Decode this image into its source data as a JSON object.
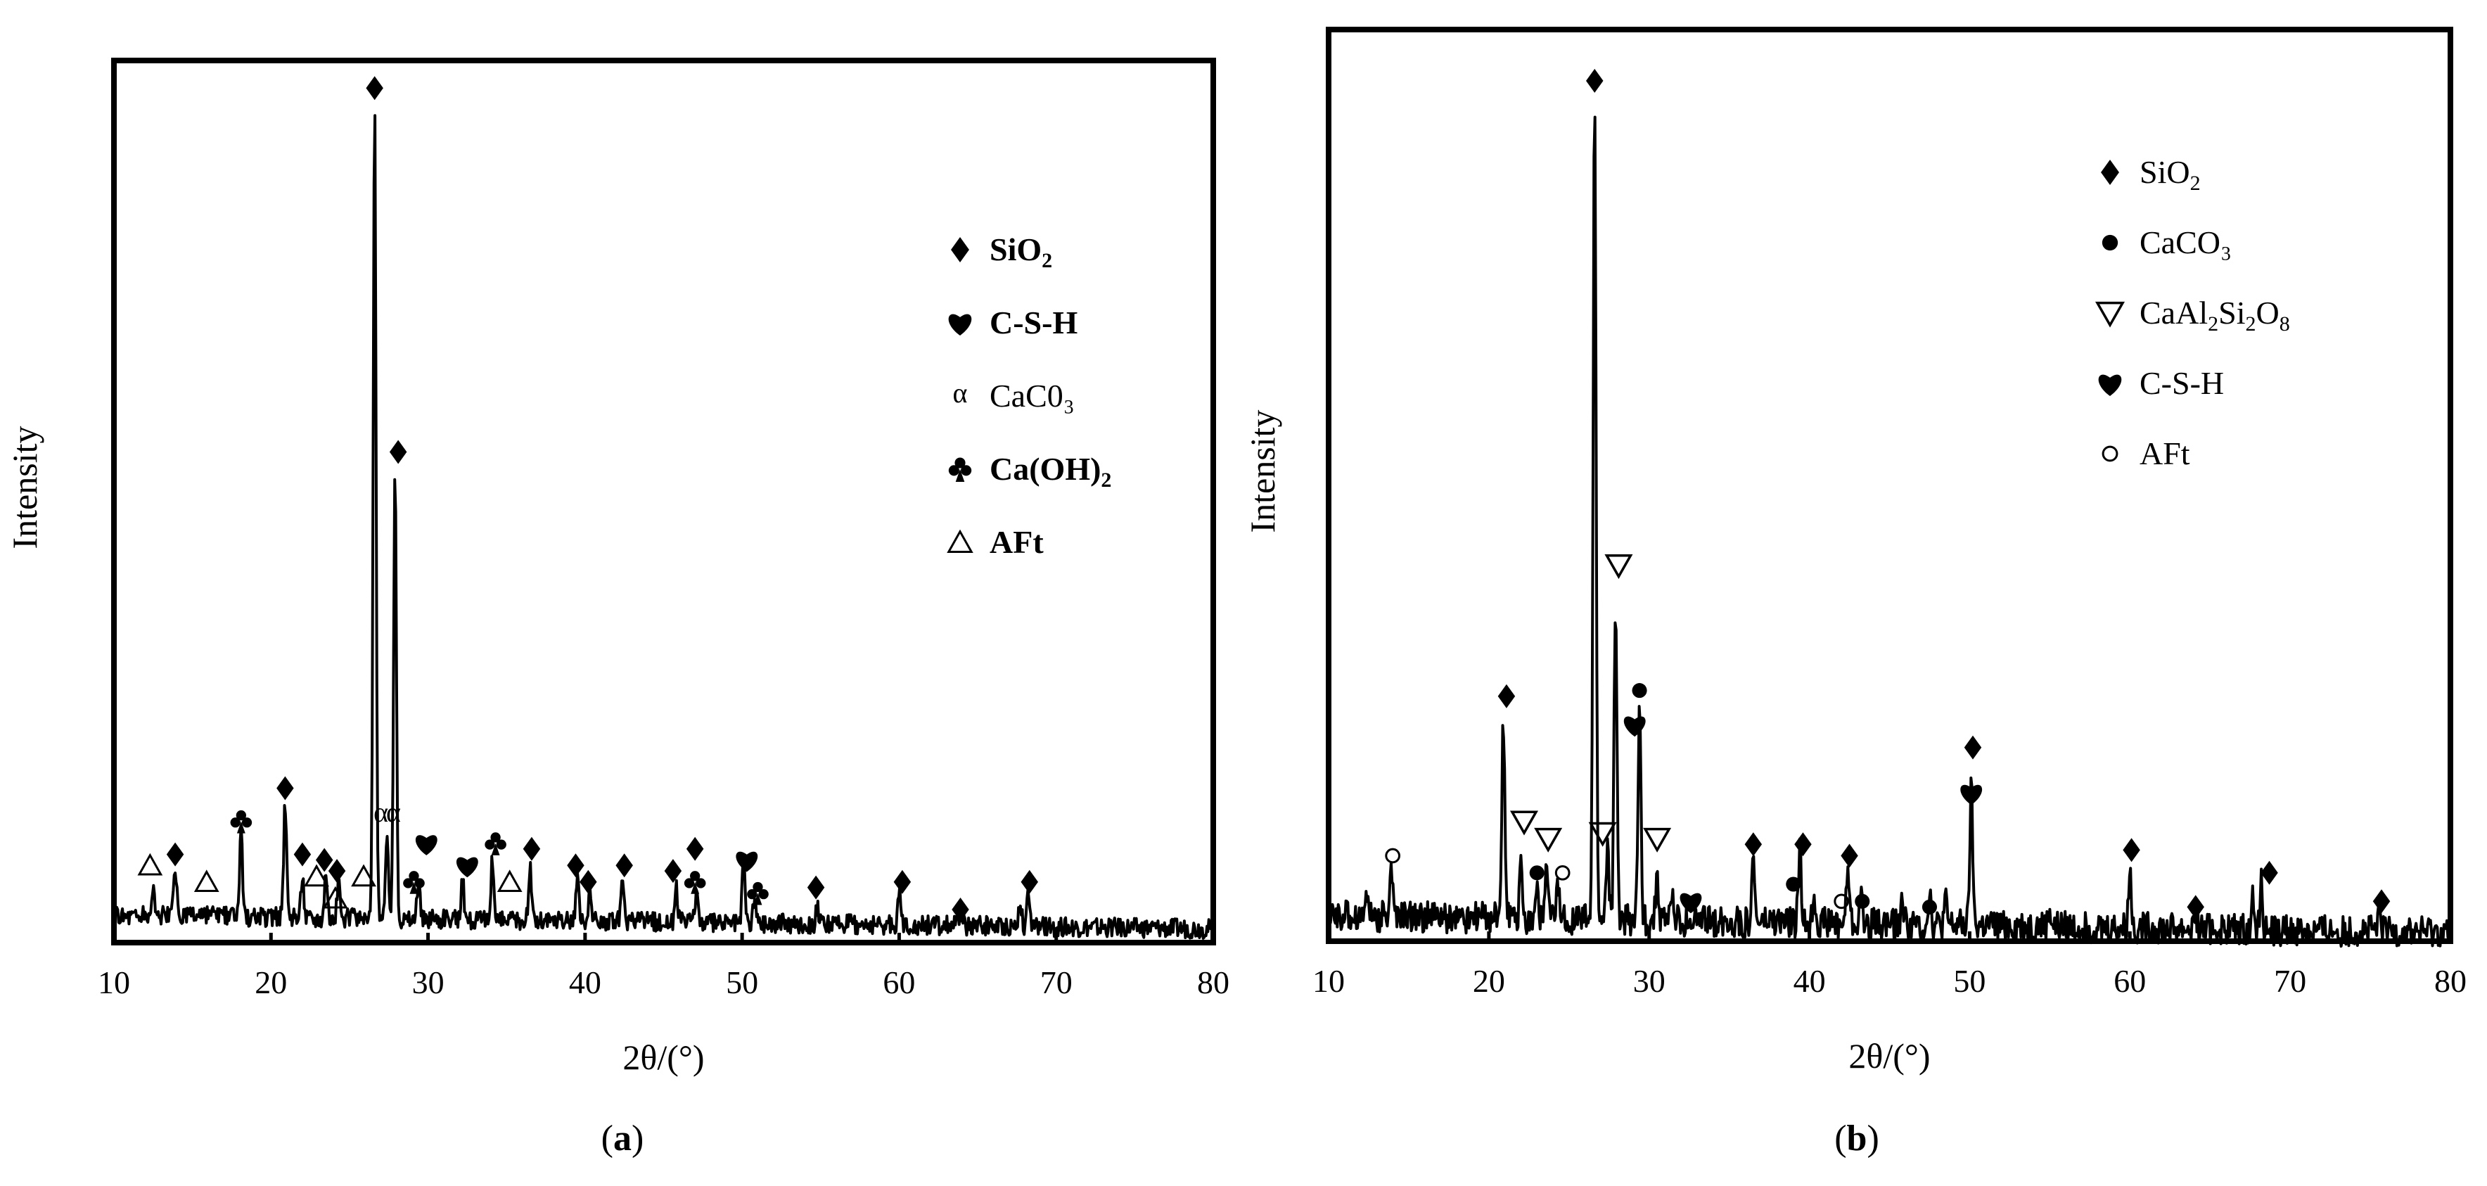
{
  "chart_data": [
    {
      "id": "a",
      "type": "line",
      "panel_label": "a",
      "xlabel": "2θ/(°)",
      "ylabel": "Intensity",
      "xlim": [
        10,
        80
      ],
      "x_ticks": [
        10,
        20,
        30,
        40,
        50,
        60,
        70,
        80
      ],
      "y_ticks": [],
      "grid": false,
      "legend_position": "top-right",
      "baseline": 0.5,
      "noise": 0.35,
      "baseline_drop": 0.25,
      "ymax": 16,
      "legend": [
        {
          "symbol": "diamond",
          "text": "SiO",
          "sub": "2",
          "after": "",
          "bold": true
        },
        {
          "symbol": "heart",
          "text": "C-S-H",
          "sub": "",
          "after": "",
          "bold": true
        },
        {
          "symbol": "alpha",
          "text": "CaC0₃",
          "sub": "",
          "after": "",
          "bold": false
        },
        {
          "symbol": "club",
          "text": "Ca(OH)",
          "sub": "2",
          "after": "",
          "bold": true
        },
        {
          "symbol": "triangle",
          "text": "AFt",
          "sub": "",
          "after": "",
          "bold": true
        }
      ],
      "peaks": [
        {
          "x": 26.6,
          "y": 14.8
        },
        {
          "x": 27.9,
          "y": 8.2
        },
        {
          "x": 20.9,
          "y": 2.1
        },
        {
          "x": 18.1,
          "y": 1.5
        },
        {
          "x": 13.9,
          "y": 0.9
        },
        {
          "x": 12.5,
          "y": 0.5
        },
        {
          "x": 22.0,
          "y": 0.8
        },
        {
          "x": 23.5,
          "y": 0.9
        },
        {
          "x": 24.3,
          "y": 0.6
        },
        {
          "x": 27.4,
          "y": 1.6
        },
        {
          "x": 29.4,
          "y": 0.7
        },
        {
          "x": 32.2,
          "y": 0.7
        },
        {
          "x": 34.1,
          "y": 1.1
        },
        {
          "x": 36.5,
          "y": 0.9
        },
        {
          "x": 39.5,
          "y": 0.8
        },
        {
          "x": 40.3,
          "y": 0.5
        },
        {
          "x": 42.4,
          "y": 0.8
        },
        {
          "x": 45.8,
          "y": 0.6
        },
        {
          "x": 47.1,
          "y": 0.6
        },
        {
          "x": 50.1,
          "y": 1.2
        },
        {
          "x": 50.8,
          "y": 0.5
        },
        {
          "x": 54.8,
          "y": 0.3
        },
        {
          "x": 60.0,
          "y": 0.6
        },
        {
          "x": 64.0,
          "y": 0.2
        },
        {
          "x": 67.7,
          "y": 0.5
        },
        {
          "x": 68.2,
          "y": 0.5
        }
      ],
      "markers": [
        {
          "symbol": "diamond",
          "x": 26.6,
          "y": 15.5
        },
        {
          "symbol": "diamond",
          "x": 28.1,
          "y": 8.9
        },
        {
          "symbol": "diamond",
          "x": 20.9,
          "y": 2.8
        },
        {
          "symbol": "club",
          "x": 18.1,
          "y": 2.2
        },
        {
          "symbol": "diamond",
          "x": 13.9,
          "y": 1.6
        },
        {
          "symbol": "triangle",
          "x": 12.3,
          "y": 1.4
        },
        {
          "symbol": "triangle",
          "x": 15.9,
          "y": 1.1
        },
        {
          "symbol": "diamond",
          "x": 22.0,
          "y": 1.6
        },
        {
          "symbol": "triangle",
          "x": 22.9,
          "y": 1.2
        },
        {
          "symbol": "diamond",
          "x": 23.4,
          "y": 1.5
        },
        {
          "symbol": "diamond",
          "x": 24.2,
          "y": 1.3
        },
        {
          "symbol": "triangle",
          "x": 24.1,
          "y": 0.8
        },
        {
          "symbol": "triangle",
          "x": 25.9,
          "y": 1.2
        },
        {
          "symbol": "alpha",
          "x": 27.0,
          "y": 2.3
        },
        {
          "symbol": "alpha",
          "x": 27.8,
          "y": 2.3
        },
        {
          "symbol": "club",
          "x": 29.1,
          "y": 1.1
        },
        {
          "symbol": "heart",
          "x": 29.9,
          "y": 1.8
        },
        {
          "symbol": "heart",
          "x": 32.5,
          "y": 1.4
        },
        {
          "symbol": "club",
          "x": 34.3,
          "y": 1.8
        },
        {
          "symbol": "triangle",
          "x": 35.2,
          "y": 1.1
        },
        {
          "symbol": "diamond",
          "x": 36.6,
          "y": 1.7
        },
        {
          "symbol": "diamond",
          "x": 39.4,
          "y": 1.4
        },
        {
          "symbol": "diamond",
          "x": 40.2,
          "y": 1.1
        },
        {
          "symbol": "diamond",
          "x": 42.5,
          "y": 1.4
        },
        {
          "symbol": "diamond",
          "x": 45.6,
          "y": 1.3
        },
        {
          "symbol": "diamond",
          "x": 47.0,
          "y": 1.7
        },
        {
          "symbol": "club",
          "x": 47.0,
          "y": 1.1
        },
        {
          "symbol": "heart",
          "x": 50.3,
          "y": 1.5
        },
        {
          "symbol": "club",
          "x": 51.0,
          "y": 0.9
        },
        {
          "symbol": "diamond",
          "x": 54.7,
          "y": 1.0
        },
        {
          "symbol": "diamond",
          "x": 60.2,
          "y": 1.1
        },
        {
          "symbol": "diamond",
          "x": 63.9,
          "y": 0.6
        },
        {
          "symbol": "diamond",
          "x": 68.3,
          "y": 1.1
        }
      ]
    },
    {
      "id": "b",
      "type": "line",
      "panel_label": "b",
      "xlabel": "2θ/(°)",
      "ylabel": "Intensity",
      "xlim": [
        10,
        80
      ],
      "x_ticks": [
        10,
        20,
        30,
        40,
        50,
        60,
        70,
        80
      ],
      "y_ticks": [],
      "grid": false,
      "legend_position": "top-right",
      "baseline": 0.45,
      "noise": 0.55,
      "baseline_drop": 0.3,
      "ymax": 16,
      "legend": [
        {
          "symbol": "diamond",
          "text": "SiO",
          "sub": "2",
          "after": "",
          "bold": false
        },
        {
          "symbol": "dot",
          "text": "CaCO₃",
          "sub": "",
          "after": "",
          "bold": false
        },
        {
          "symbol": "triangle-down",
          "text": "CaAl",
          "sub": "2",
          "after": "Si",
          "sub2": "2",
          "after2": "O",
          "sub3": "8",
          "bold": false
        },
        {
          "symbol": "heart",
          "text": "C-S-H",
          "sub": "",
          "after": "",
          "bold": false
        },
        {
          "symbol": "circle",
          "text": "AFt",
          "sub": "",
          "after": "",
          "bold": false
        }
      ],
      "peaks": [
        {
          "x": 26.6,
          "y": 14.6
        },
        {
          "x": 27.9,
          "y": 5.6
        },
        {
          "x": 20.9,
          "y": 3.5
        },
        {
          "x": 29.4,
          "y": 3.7
        },
        {
          "x": 13.9,
          "y": 0.9
        },
        {
          "x": 12.4,
          "y": 0.5
        },
        {
          "x": 22.0,
          "y": 0.9
        },
        {
          "x": 23.0,
          "y": 0.6
        },
        {
          "x": 23.6,
          "y": 0.9
        },
        {
          "x": 24.3,
          "y": 0.6
        },
        {
          "x": 27.4,
          "y": 1.3
        },
        {
          "x": 30.5,
          "y": 0.8
        },
        {
          "x": 31.4,
          "y": 0.5
        },
        {
          "x": 36.5,
          "y": 1.1
        },
        {
          "x": 39.4,
          "y": 1.2
        },
        {
          "x": 40.3,
          "y": 0.5
        },
        {
          "x": 42.4,
          "y": 1.0
        },
        {
          "x": 43.2,
          "y": 0.5
        },
        {
          "x": 45.8,
          "y": 0.4
        },
        {
          "x": 47.5,
          "y": 0.6
        },
        {
          "x": 48.5,
          "y": 0.4
        },
        {
          "x": 50.1,
          "y": 2.4
        },
        {
          "x": 55.0,
          "y": 0.3
        },
        {
          "x": 60.0,
          "y": 1.0
        },
        {
          "x": 64.1,
          "y": 0.3
        },
        {
          "x": 67.7,
          "y": 0.6
        },
        {
          "x": 68.2,
          "y": 0.8
        },
        {
          "x": 75.6,
          "y": 0.3
        }
      ],
      "markers": [
        {
          "symbol": "diamond",
          "x": 26.6,
          "y": 15.1
        },
        {
          "symbol": "triangle-down",
          "x": 28.1,
          "y": 6.6
        },
        {
          "symbol": "diamond",
          "x": 21.1,
          "y": 4.3
        },
        {
          "symbol": "dot",
          "x": 29.4,
          "y": 4.4
        },
        {
          "symbol": "heart",
          "x": 29.1,
          "y": 3.8
        },
        {
          "symbol": "circle",
          "x": 14.0,
          "y": 1.5
        },
        {
          "symbol": "triangle-down",
          "x": 22.2,
          "y": 2.1
        },
        {
          "symbol": "triangle-down",
          "x": 23.7,
          "y": 1.8
        },
        {
          "symbol": "dot",
          "x": 23.0,
          "y": 1.2
        },
        {
          "symbol": "circle",
          "x": 24.6,
          "y": 1.2
        },
        {
          "symbol": "triangle-down",
          "x": 27.1,
          "y": 1.9
        },
        {
          "symbol": "triangle-down",
          "x": 30.5,
          "y": 1.8
        },
        {
          "symbol": "heart",
          "x": 32.6,
          "y": 0.7
        },
        {
          "symbol": "diamond",
          "x": 36.5,
          "y": 1.7
        },
        {
          "symbol": "diamond",
          "x": 39.6,
          "y": 1.7
        },
        {
          "symbol": "dot",
          "x": 39.0,
          "y": 1.0
        },
        {
          "symbol": "diamond",
          "x": 42.5,
          "y": 1.5
        },
        {
          "symbol": "circle",
          "x": 42.0,
          "y": 0.7
        },
        {
          "symbol": "dot",
          "x": 43.3,
          "y": 0.7
        },
        {
          "symbol": "dot",
          "x": 47.5,
          "y": 0.6
        },
        {
          "symbol": "diamond",
          "x": 50.2,
          "y": 3.4
        },
        {
          "symbol": "heart",
          "x": 50.1,
          "y": 2.6
        },
        {
          "symbol": "diamond",
          "x": 60.1,
          "y": 1.6
        },
        {
          "symbol": "diamond",
          "x": 64.1,
          "y": 0.6
        },
        {
          "symbol": "diamond",
          "x": 68.7,
          "y": 1.2
        },
        {
          "symbol": "diamond",
          "x": 75.7,
          "y": 0.7
        }
      ]
    }
  ]
}
